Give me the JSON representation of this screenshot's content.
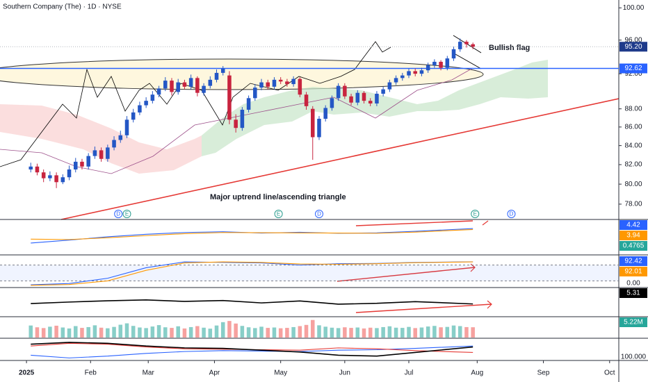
{
  "chart_data": {
    "type": "candlestick",
    "title": "Southern Company (The) · 1D · NYSE",
    "log_scale": true,
    "up_color": "#2457c5",
    "down_color": "#c8243f",
    "ylim": [
      76.5,
      101
    ],
    "yticks": [
      {
        "value": 78,
        "label": "78.00"
      },
      {
        "value": 80,
        "label": "80.00"
      },
      {
        "value": 82,
        "label": "82.00"
      },
      {
        "value": 84,
        "label": "84.00"
      },
      {
        "value": 86,
        "label": "86.00"
      },
      {
        "value": 88,
        "label": "88.00"
      },
      {
        "value": 92,
        "label": "92.00"
      },
      {
        "value": 96,
        "label": "96.00"
      },
      {
        "value": 100,
        "label": "100.00"
      }
    ],
    "xlim": [
      -12.4,
      277.3
    ],
    "xticks": [
      {
        "value": 0,
        "label": "2025"
      },
      {
        "value": 30,
        "label": "Feb"
      },
      {
        "value": 57,
        "label": "Mar"
      },
      {
        "value": 88,
        "label": "Apr"
      },
      {
        "value": 119,
        "label": "May"
      },
      {
        "value": 149,
        "label": "Jun"
      },
      {
        "value": 179,
        "label": "Jul"
      },
      {
        "value": 211,
        "label": "Aug"
      },
      {
        "value": 242,
        "label": "Sep"
      },
      {
        "value": 273,
        "label": "Oct"
      }
    ],
    "x": [
      2,
      5,
      8,
      11,
      14,
      17,
      20,
      23,
      26,
      29,
      32,
      35,
      38,
      41,
      44,
      47,
      50,
      53,
      56,
      59,
      62,
      65,
      68,
      71,
      74,
      77,
      80,
      83,
      86,
      89,
      92,
      95,
      98,
      101,
      104,
      107,
      110,
      113,
      116,
      119,
      122,
      125,
      128,
      131,
      134,
      137,
      140,
      143,
      146,
      149,
      152,
      155,
      158,
      161,
      164,
      167,
      170,
      173,
      176,
      179,
      182,
      185,
      188,
      191,
      194,
      197,
      200,
      203,
      206,
      209
    ],
    "open": [
      81.5,
      81.8,
      81.2,
      80.6,
      80.9,
      80.2,
      80.7,
      81.5,
      82.3,
      81.8,
      82.9,
      83.5,
      82.6,
      83.8,
      84.6,
      85.1,
      86.8,
      87.6,
      88.4,
      88.9,
      89.6,
      90.3,
      91.2,
      89.9,
      91.0,
      90.5,
      91.5,
      89.8,
      90.6,
      91.3,
      92.1,
      91.8,
      86.8,
      85.9,
      87.9,
      89.2,
      90.4,
      91.0,
      90.5,
      91.3,
      91.1,
      90.8,
      91.4,
      89.6,
      88.0,
      84.9,
      86.9,
      88.1,
      89.2,
      90.6,
      89.4,
      88.7,
      89.8,
      88.9,
      88.6,
      89.7,
      90.2,
      91.0,
      91.5,
      91.8,
      92.3,
      92.0,
      92.4,
      93.0,
      93.4,
      92.7,
      93.8,
      94.9,
      95.8,
      95.5
    ],
    "high": [
      82.2,
      82.1,
      81.5,
      81.3,
      81.2,
      81.0,
      81.9,
      82.7,
      82.6,
      83.2,
      83.9,
      83.8,
      84.1,
      85.0,
      85.6,
      87.2,
      88.0,
      88.8,
      89.3,
      90.0,
      90.6,
      91.6,
      91.5,
      91.4,
      91.3,
      91.9,
      91.7,
      90.9,
      91.7,
      92.5,
      92.9,
      92.3,
      87.4,
      88.2,
      89.5,
      90.8,
      91.4,
      91.3,
      91.6,
      91.6,
      91.4,
      91.7,
      91.6,
      89.9,
      88.3,
      87.2,
      88.4,
      89.5,
      90.9,
      90.9,
      89.7,
      90.1,
      90.0,
      89.2,
      90.0,
      90.5,
      91.3,
      91.8,
      92.1,
      92.6,
      92.6,
      92.7,
      93.3,
      93.7,
      93.6,
      94.1,
      95.2,
      96.2,
      96.0,
      95.7
    ],
    "low": [
      81.2,
      80.9,
      80.2,
      80.3,
      79.6,
      80.0,
      80.4,
      81.2,
      81.5,
      81.5,
      82.6,
      82.3,
      82.3,
      83.5,
      84.3,
      84.8,
      86.5,
      87.3,
      88.1,
      88.6,
      89.3,
      90.0,
      89.5,
      89.6,
      90.2,
      90.2,
      89.4,
      89.5,
      90.3,
      91.0,
      91.8,
      86.3,
      85.4,
      85.6,
      87.6,
      88.9,
      90.1,
      90.2,
      90.2,
      90.8,
      90.5,
      90.5,
      89.3,
      87.9,
      82.5,
      84.6,
      86.6,
      87.8,
      88.9,
      89.1,
      88.4,
      88.4,
      88.6,
      88.3,
      88.3,
      89.4,
      89.9,
      90.7,
      91.2,
      91.5,
      91.7,
      91.7,
      92.1,
      92.7,
      92.4,
      92.4,
      93.5,
      94.6,
      95.1,
      94.9
    ],
    "close": [
      81.8,
      81.2,
      80.6,
      80.9,
      80.2,
      80.7,
      81.5,
      82.3,
      81.8,
      82.9,
      83.5,
      82.6,
      83.8,
      84.6,
      85.1,
      86.8,
      87.6,
      88.4,
      88.9,
      89.6,
      90.3,
      91.2,
      89.9,
      91.0,
      90.5,
      91.5,
      89.8,
      90.6,
      91.3,
      92.1,
      92.6,
      86.8,
      85.9,
      87.9,
      89.2,
      90.4,
      91.0,
      90.5,
      91.3,
      91.1,
      90.8,
      91.4,
      89.6,
      88.3,
      84.9,
      86.9,
      88.1,
      89.2,
      90.6,
      89.4,
      88.7,
      89.8,
      88.9,
      88.6,
      89.7,
      90.2,
      91.0,
      91.5,
      91.8,
      92.3,
      92.0,
      92.4,
      93.0,
      93.4,
      92.7,
      93.8,
      94.9,
      95.8,
      95.5,
      95.2
    ],
    "price_lines": [
      {
        "value": 95.2,
        "label": "95.20",
        "color": "#1e3a8a",
        "style": "dotted"
      },
      {
        "value": 92.62,
        "label": "92.62",
        "color": "#2962ff",
        "style": "solid"
      }
    ],
    "annotations": [
      "Bullish flag",
      "Major uptrend line/ascending triangle"
    ],
    "events": [
      {
        "label": "D",
        "x": 43
      },
      {
        "label": "E",
        "x": 47
      },
      {
        "label": "E",
        "x": 118
      },
      {
        "label": "D",
        "x": 137
      },
      {
        "label": "E",
        "x": 210
      },
      {
        "label": "D",
        "x": 227
      }
    ],
    "pane_x": [
      2,
      20,
      38,
      56,
      74,
      92,
      110,
      128,
      146,
      164,
      182,
      209
    ],
    "panes": [
      {
        "ylim": [
          -8,
          8
        ],
        "series": [
          {
            "color": "#2962ff",
            "values": [
              -3.0,
              -1.5,
              0.2,
              1.5,
              2.4,
              2.8,
              2.1,
              2.5,
              2.0,
              2.2,
              3.0,
              4.42
            ]
          },
          {
            "color": "#ff9800",
            "values": [
              -1.0,
              -1.2,
              -0.3,
              0.8,
              1.8,
              2.4,
              2.3,
              2.2,
              2.1,
              2.0,
              2.6,
              3.94
            ]
          }
        ],
        "labels": [
          {
            "text": "4.42",
            "color": "#2962ff"
          },
          {
            "text": "3.94",
            "color": "#ff9800"
          },
          {
            "text": "0.4765",
            "color": "#26a69a"
          }
        ]
      },
      {
        "ylim": [
          0,
          108
        ],
        "bands": [
          20,
          80
        ],
        "series": [
          {
            "color": "#2962ff",
            "values": [
              5,
              10,
              30,
              70,
              92,
              90,
              88,
              80,
              85,
              86,
              90,
              92.42
            ]
          },
          {
            "color": "#ff9800",
            "values": [
              3,
              6,
              20,
              60,
              88,
              92,
              90,
              84,
              83,
              85,
              89,
              92.01
            ]
          }
        ],
        "labels": [
          {
            "text": "92.42",
            "color": "#2962ff"
          },
          {
            "text": "92.01",
            "color": "#ff9800"
          }
        ],
        "tick": "0.00"
      },
      {
        "ylim": [
          0,
          12
        ],
        "series": [
          {
            "color": "#000000",
            "values": [
              5.5,
              6.2,
              6.8,
              7.2,
              6.5,
              6.9,
              5.8,
              6.7,
              5.2,
              5.6,
              6.4,
              5.31
            ]
          }
        ],
        "labels": [
          {
            "text": "5.31",
            "color": "#000000"
          }
        ]
      },
      {
        "ylim": [
          0,
          9.5
        ],
        "bars": [
          6.1,
          5.2,
          4.8,
          5.5,
          6.0,
          5.1,
          4.6,
          5.8,
          4.9,
          5.3,
          6.2,
          5.0,
          4.7,
          5.4,
          6.5,
          7.2,
          5.9,
          5.1,
          4.8,
          5.6,
          6.3,
          5.2,
          4.9,
          5.7,
          4.6,
          5.3,
          5.8,
          5.0,
          4.5,
          6.1,
          7.8,
          8.4,
          7.1,
          5.9,
          5.2,
          4.8,
          5.5,
          4.9,
          5.1,
          4.7,
          4.9,
          5.3,
          5.8,
          6.4,
          8.9,
          6.2,
          5.5,
          5.0,
          4.8,
          5.2,
          4.9,
          5.1,
          4.6,
          5.0,
          4.8,
          5.3,
          5.7,
          5.0,
          4.9,
          5.4,
          4.8,
          5.1,
          5.6,
          5.9,
          5.2,
          5.4,
          6.1,
          5.8,
          5.3,
          5.22
        ],
        "labels": [
          {
            "text": "5.22M",
            "color": "#26a69a"
          }
        ]
      },
      {
        "ylim": [
          -110,
          110
        ],
        "series": [
          {
            "color": "#2962ff",
            "values": [
              -60,
              -90,
              -70,
              -40,
              -20,
              -10,
              -15,
              -20,
              -5,
              0,
              15,
              40
            ]
          },
          {
            "color": "#e53935",
            "values": [
              40,
              70,
              60,
              30,
              10,
              5,
              0,
              -5,
              20,
              10,
              -10,
              -30
            ]
          },
          {
            "color": "#000000",
            "values": [
              60,
              80,
              70,
              40,
              20,
              15,
              -5,
              -25,
              -60,
              -70,
              -30,
              30
            ]
          }
        ],
        "tick": "100.000"
      }
    ]
  }
}
